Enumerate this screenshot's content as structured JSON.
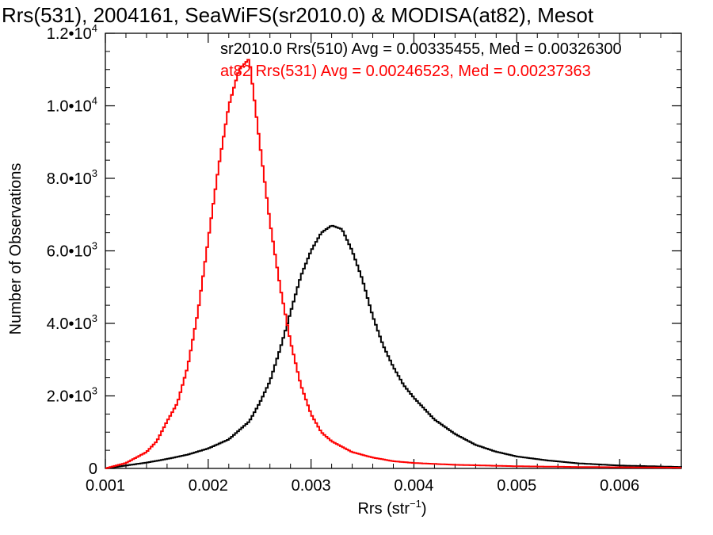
{
  "chart_data": {
    "type": "line",
    "step": true,
    "title": "Rrs(531), 2004161, SeaWiFS(sr2010.0) & MODISA(at82), Mesot",
    "xlabel": "Rrs (str",
    "xlabel_sup": "−1",
    "xlabel_close": ")",
    "ylabel": "Number of Observations",
    "xlim": [
      0.001,
      0.0066
    ],
    "ylim": [
      0,
      12000
    ],
    "x_ticks": [
      {
        "value": 0.001,
        "label": "0.001"
      },
      {
        "value": 0.002,
        "label": "0.002"
      },
      {
        "value": 0.003,
        "label": "0.003"
      },
      {
        "value": 0.004,
        "label": "0.004"
      },
      {
        "value": 0.005,
        "label": "0.005"
      },
      {
        "value": 0.006,
        "label": "0.006"
      }
    ],
    "y_ticks": [
      {
        "value": 0,
        "mant": "0",
        "exp": ""
      },
      {
        "value": 2000,
        "mant": "2.0•10",
        "exp": "3"
      },
      {
        "value": 4000,
        "mant": "4.0•10",
        "exp": "3"
      },
      {
        "value": 6000,
        "mant": "6.0•10",
        "exp": "3"
      },
      {
        "value": 8000,
        "mant": "8.0•10",
        "exp": "3"
      },
      {
        "value": 10000,
        "mant": "1.0•10",
        "exp": "4"
      },
      {
        "value": 12000,
        "mant": "1.2•10",
        "exp": "4"
      }
    ],
    "annotations": [
      {
        "text": "sr2010.0 Rrs(510) Avg = 0.00335455, Med = 0.00326300",
        "color": "#000000"
      },
      {
        "text": "at82 Rrs(531) Avg = 0.00246523, Med = 0.00237363",
        "color": "#ff0000"
      }
    ],
    "series": [
      {
        "color": "#000000",
        "x": [
          0.001,
          0.0012,
          0.0014,
          0.0016,
          0.0018,
          0.002,
          0.0022,
          0.0024,
          0.0025,
          0.0026,
          0.0027,
          0.0028,
          0.0029,
          0.003,
          0.0031,
          0.0032,
          0.0033,
          0.0034,
          0.0035,
          0.0036,
          0.0037,
          0.0038,
          0.0039,
          0.004,
          0.0042,
          0.0044,
          0.0046,
          0.0048,
          0.005,
          0.0053,
          0.0056,
          0.006,
          0.0066
        ],
        "y": [
          0,
          80,
          160,
          260,
          380,
          550,
          800,
          1300,
          1800,
          2400,
          3300,
          4300,
          5300,
          6000,
          6500,
          6700,
          6600,
          6000,
          5200,
          4200,
          3400,
          2800,
          2300,
          1950,
          1350,
          950,
          650,
          460,
          330,
          220,
          140,
          80,
          40
        ]
      },
      {
        "color": "#ff0000",
        "x": [
          0.001,
          0.0012,
          0.0014,
          0.0015,
          0.0016,
          0.0017,
          0.0018,
          0.0019,
          0.002,
          0.0021,
          0.0022,
          0.0023,
          0.0024,
          0.0025,
          0.0026,
          0.0027,
          0.0028,
          0.0029,
          0.003,
          0.0031,
          0.0032,
          0.0034,
          0.0036,
          0.0038,
          0.004,
          0.0044,
          0.005,
          0.0056,
          0.0066
        ],
        "y": [
          0,
          150,
          450,
          750,
          1300,
          1800,
          2800,
          4300,
          6300,
          8300,
          10000,
          11000,
          11300,
          9000,
          6800,
          5000,
          3500,
          2300,
          1500,
          1000,
          750,
          450,
          300,
          200,
          150,
          100,
          60,
          40,
          20
        ]
      }
    ]
  }
}
